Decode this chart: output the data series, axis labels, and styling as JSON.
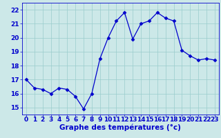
{
  "x": [
    0,
    1,
    2,
    3,
    4,
    5,
    6,
    7,
    8,
    9,
    10,
    11,
    12,
    13,
    14,
    15,
    16,
    17,
    18,
    19,
    20,
    21,
    22,
    23
  ],
  "y": [
    17.0,
    16.4,
    16.3,
    16.0,
    16.4,
    16.3,
    15.8,
    14.9,
    16.0,
    18.5,
    20.0,
    21.2,
    21.8,
    19.9,
    21.0,
    21.2,
    21.8,
    21.4,
    21.2,
    19.1,
    18.7,
    18.4,
    18.5,
    18.4
  ],
  "line_color": "#0000cc",
  "marker": "D",
  "marker_size": 2.5,
  "bg_color": "#cce8e8",
  "grid_color": "#99cccc",
  "xlabel": "Graphe des températures (°c)",
  "xlabel_color": "#0000cc",
  "xlabel_fontsize": 7.5,
  "tick_color": "#0000cc",
  "tick_fontsize": 6.5,
  "xlim": [
    -0.5,
    23.5
  ],
  "ylim": [
    14.5,
    22.5
  ],
  "yticks": [
    15,
    16,
    17,
    18,
    19,
    20,
    21,
    22
  ],
  "xticks": [
    0,
    1,
    2,
    3,
    4,
    5,
    6,
    7,
    8,
    9,
    10,
    11,
    12,
    13,
    14,
    15,
    16,
    17,
    18,
    19,
    20,
    21,
    22,
    23
  ]
}
